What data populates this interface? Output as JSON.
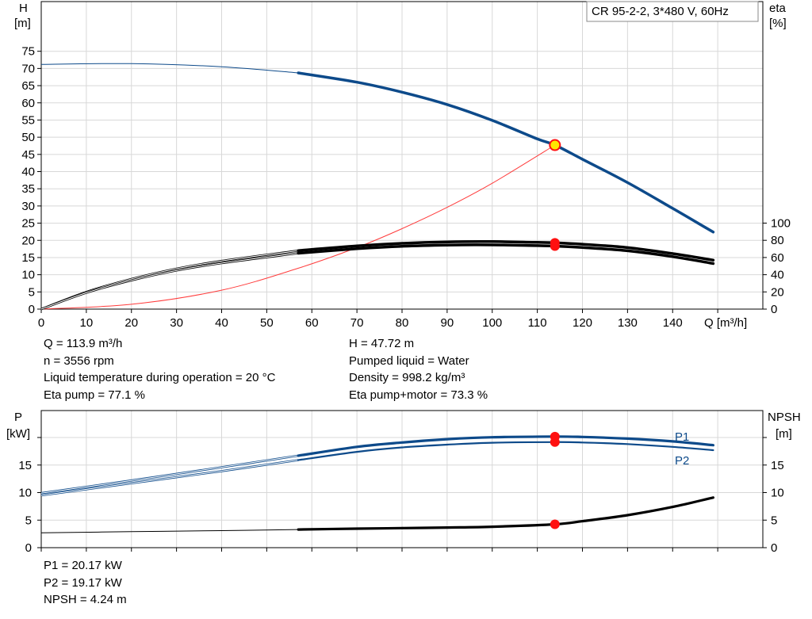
{
  "colors": {
    "head": "#0d4a8a",
    "eta": "#000000",
    "pump_curve": "#ff3b3b",
    "power": "#0d4a8a",
    "npsh": "#000000",
    "duty_point": "#ff1010",
    "marker_fill": "#ffe600"
  },
  "curve_chart": {
    "legend_box": "CR 95-2-2, 3*480 V, 60Hz",
    "y_left": {
      "title": "H",
      "unit": "[m]",
      "ticks": [
        0,
        5,
        10,
        15,
        20,
        25,
        30,
        35,
        40,
        45,
        50,
        55,
        60,
        65,
        70,
        75
      ]
    },
    "y_right": {
      "title": "eta",
      "unit": "[%]",
      "ticks": [
        0,
        20,
        40,
        60,
        80,
        100
      ]
    },
    "x_axis": {
      "unit": "Q [m³/h]",
      "ticks": [
        0,
        10,
        20,
        30,
        40,
        50,
        60,
        70,
        80,
        90,
        100,
        110,
        120,
        130,
        140
      ]
    }
  },
  "duty_info_top": {
    "left": [
      "Q = 113.9 m³/h",
      "n = 3556 rpm",
      "Liquid temperature during operation = 20 °C",
      "Eta pump = 77.1 %"
    ],
    "right": [
      "H = 47.72 m",
      "Pumped liquid = Water",
      "Density = 998.2 kg/m³",
      "Eta pump+motor = 73.3 %"
    ]
  },
  "power_chart": {
    "y_left": {
      "title": "P",
      "unit": "[kW]",
      "ticks": [
        0,
        5,
        10,
        15
      ]
    },
    "y_right": {
      "title": "NPSH",
      "unit": "[m]",
      "ticks": [
        0,
        5,
        10,
        15
      ]
    },
    "series_labels": [
      "P1",
      "P2"
    ]
  },
  "duty_info_bottom": [
    "P1 = 20.17 kW",
    "P2 = 19.17 kW",
    "NPSH = 4.24 m"
  ],
  "chart_data": [
    {
      "type": "line",
      "x_label": "Q [m³/h]",
      "y_label": "H [m]",
      "y2_label": "eta [%]",
      "xlim": [
        0,
        160
      ],
      "ylim": [
        0,
        80
      ],
      "y2lim": [
        0,
        100
      ],
      "series": [
        {
          "name": "H",
          "axis": "left",
          "x": [
            0,
            20,
            40,
            57,
            70,
            80,
            90,
            100,
            110,
            113.9,
            120,
            130,
            140,
            149
          ],
          "y": [
            71.2,
            71.4,
            70.5,
            68.7,
            66,
            63.1,
            59.5,
            54.9,
            49.5,
            47.72,
            43.6,
            36.8,
            29.3,
            22.4
          ]
        },
        {
          "axis": "right",
          "x": [
            0,
            10,
            20,
            30,
            40,
            57,
            70,
            80,
            90,
            100,
            110,
            113.9,
            120,
            130,
            140,
            149
          ],
          "y": [
            0,
            20,
            35,
            47,
            56,
            68,
            73.5,
            76.5,
            78.2,
            78.5,
            77.6,
            77.1,
            75.5,
            71.5,
            64.5,
            57
          ]
        },
        {
          "axis": "right",
          "x": [
            0,
            10,
            20,
            30,
            40,
            57,
            70,
            80,
            90,
            100,
            110,
            113.9,
            120,
            130,
            140,
            149
          ],
          "y": [
            0,
            19,
            33.5,
            45,
            53.5,
            65,
            70.3,
            73.1,
            74.5,
            74.7,
            73.8,
            73.3,
            71.7,
            67.8,
            61,
            53
          ]
        },
        {
          "axis": "left",
          "x": [
            0,
            20,
            40,
            57,
            70,
            80,
            90,
            100,
            113.9
          ],
          "y": [
            0,
            1.4,
            5.5,
            11.9,
            17.9,
            23.4,
            29.6,
            36.6,
            47.72
          ]
        }
      ],
      "duty_point": {
        "Q": 113.9,
        "H": 47.72,
        "eta_pump": 77.1,
        "eta_pump_motor": 73.3
      }
    },
    {
      "type": "line",
      "x_label": "Q [m³/h]",
      "y_label": "P [kW]",
      "y2_label": "NPSH [m]",
      "xlim": [
        0,
        160
      ],
      "ylim": [
        0,
        22
      ],
      "y2lim": [
        0,
        22
      ],
      "series": [
        {
          "name": "P1",
          "axis": "left",
          "x": [
            0,
            20,
            40,
            57,
            70,
            80,
            90,
            100,
            113.9,
            120,
            130,
            140,
            149
          ],
          "y": [
            9.9,
            12.2,
            14.6,
            16.7,
            18.3,
            19.1,
            19.7,
            20.05,
            20.17,
            20.1,
            19.8,
            19.3,
            18.6
          ]
        },
        {
          "name": "P2",
          "axis": "left",
          "x": [
            0,
            20,
            40,
            57,
            70,
            80,
            90,
            100,
            113.9,
            120,
            130,
            140,
            149
          ],
          "y": [
            9.5,
            11.7,
            13.9,
            15.9,
            17.4,
            18.2,
            18.7,
            19.05,
            19.17,
            19.1,
            18.8,
            18.3,
            17.7
          ]
        },
        {
          "name": "NPSH",
          "axis": "right",
          "x": [
            0,
            20,
            40,
            57,
            70,
            80,
            90,
            100,
            113.9,
            120,
            130,
            140,
            149
          ],
          "y": [
            2.7,
            2.9,
            3.1,
            3.3,
            3.45,
            3.55,
            3.65,
            3.8,
            4.24,
            4.8,
            5.9,
            7.4,
            9.1
          ]
        }
      ],
      "duty_point": {
        "Q": 113.9,
        "P1": 20.17,
        "P2": 19.17,
        "NPSH": 4.24
      }
    }
  ]
}
